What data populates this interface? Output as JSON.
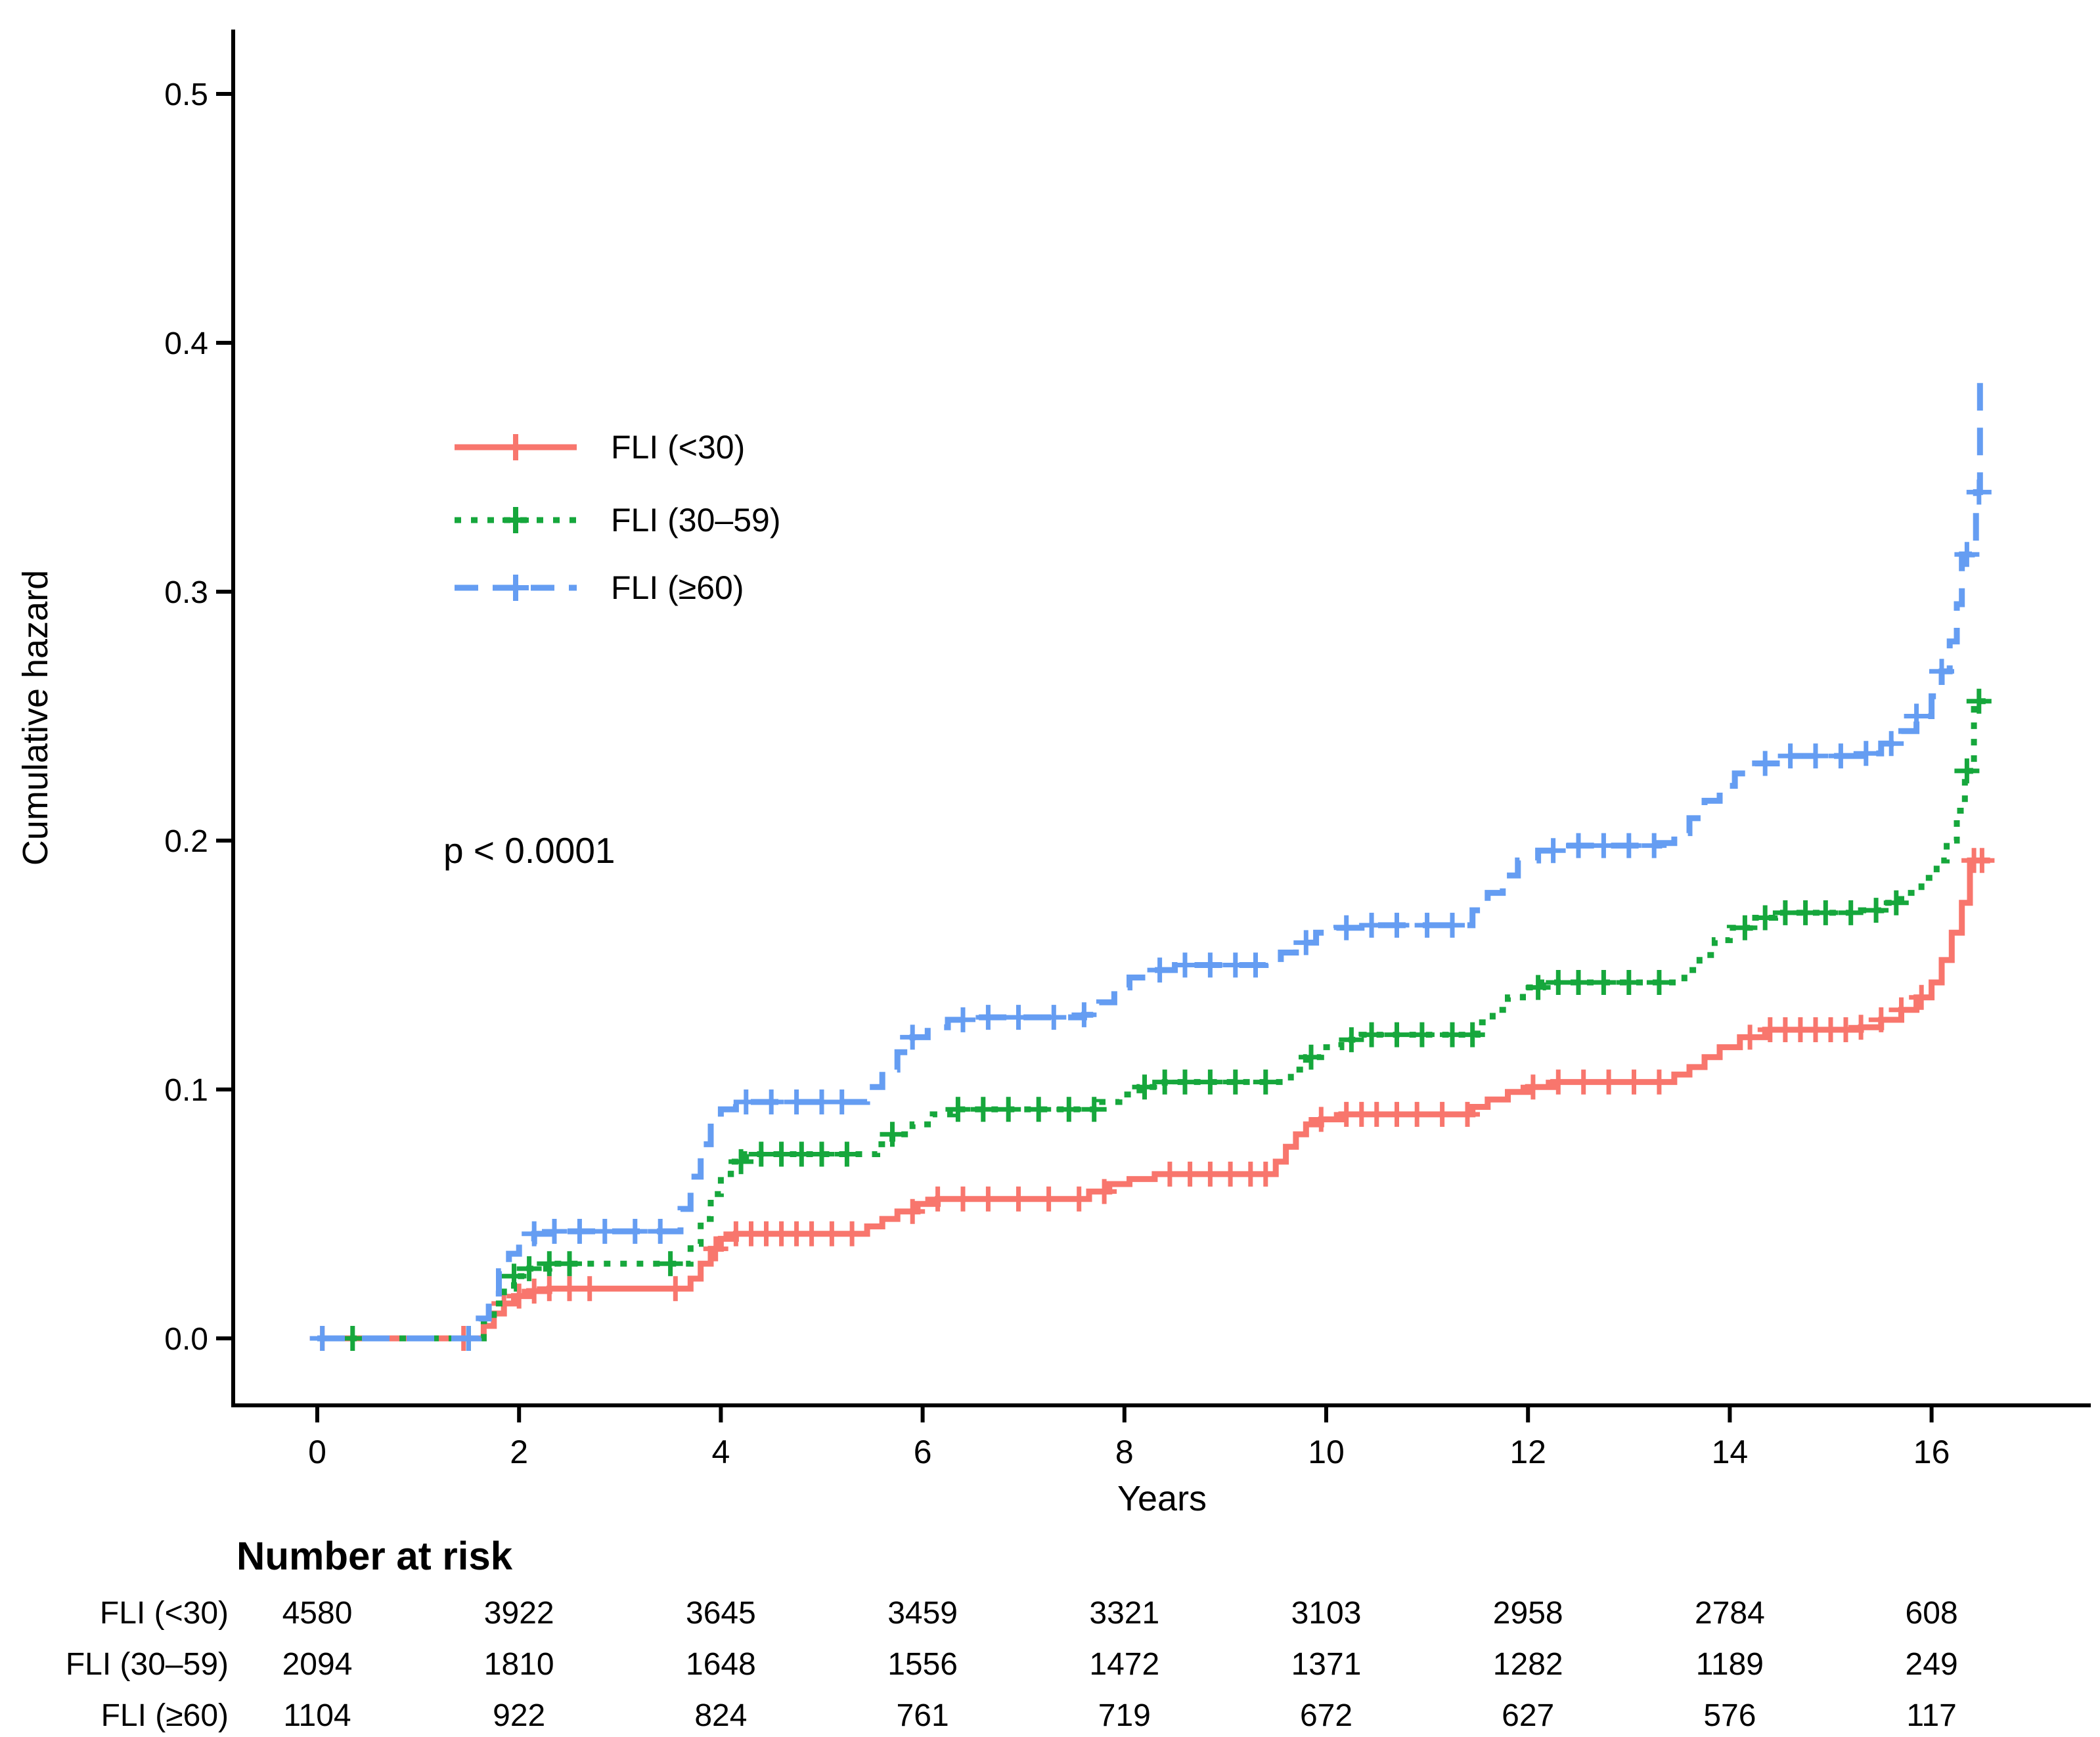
{
  "figure": {
    "background": "#ffffff",
    "kind": "Kaplan-Meier cumulative hazard plot with number-at-risk table"
  },
  "chart_data": {
    "type": "line",
    "subtype": "step-cumulative-hazard",
    "title": "",
    "xlabel": "Years",
    "ylabel": "Cumulative hazard",
    "xlim": [
      0,
      17.6
    ],
    "ylim": [
      0,
      0.53
    ],
    "x_ticks": [
      0,
      2,
      4,
      6,
      8,
      10,
      12,
      14,
      16
    ],
    "y_ticks": [
      {
        "value": 0.0,
        "label": "0.0"
      },
      {
        "value": 0.1,
        "label": "0.1"
      },
      {
        "value": 0.2,
        "label": "0.2"
      },
      {
        "value": 0.3,
        "label": "0.3"
      },
      {
        "value": 0.4,
        "label": "0.4"
      },
      {
        "value": 0.5,
        "label": "0.5"
      }
    ],
    "grid": false,
    "annotation": {
      "text": "p < 0.0001"
    },
    "legend_position": "inside-top-left",
    "series": [
      {
        "name": "FLI (<30)",
        "color": "#F8766D",
        "dash": "solid",
        "points": [
          [
            0,
            0
          ],
          [
            1.55,
            0
          ],
          [
            1.65,
            0.005
          ],
          [
            1.75,
            0.01
          ],
          [
            1.85,
            0.014
          ],
          [
            1.95,
            0.017
          ],
          [
            2.1,
            0.019
          ],
          [
            2.3,
            0.02
          ],
          [
            3.6,
            0.02
          ],
          [
            3.7,
            0.024
          ],
          [
            3.8,
            0.03
          ],
          [
            3.9,
            0.036
          ],
          [
            4.0,
            0.04
          ],
          [
            4.15,
            0.042
          ],
          [
            5.3,
            0.042
          ],
          [
            5.45,
            0.045
          ],
          [
            5.6,
            0.048
          ],
          [
            5.75,
            0.051
          ],
          [
            5.95,
            0.054
          ],
          [
            6.15,
            0.056
          ],
          [
            7.5,
            0.056
          ],
          [
            7.65,
            0.059
          ],
          [
            7.85,
            0.062
          ],
          [
            8.05,
            0.064
          ],
          [
            8.3,
            0.066
          ],
          [
            9.4,
            0.066
          ],
          [
            9.5,
            0.071
          ],
          [
            9.6,
            0.077
          ],
          [
            9.7,
            0.082
          ],
          [
            9.8,
            0.086
          ],
          [
            9.95,
            0.088
          ],
          [
            10.15,
            0.09
          ],
          [
            11.3,
            0.09
          ],
          [
            11.45,
            0.093
          ],
          [
            11.6,
            0.096
          ],
          [
            11.8,
            0.099
          ],
          [
            12.0,
            0.101
          ],
          [
            12.25,
            0.103
          ],
          [
            13.3,
            0.103
          ],
          [
            13.45,
            0.106
          ],
          [
            13.6,
            0.109
          ],
          [
            13.75,
            0.113
          ],
          [
            13.9,
            0.117
          ],
          [
            14.1,
            0.121
          ],
          [
            14.35,
            0.124
          ],
          [
            15.3,
            0.125
          ],
          [
            15.5,
            0.128
          ],
          [
            15.7,
            0.132
          ],
          [
            15.85,
            0.137
          ],
          [
            16.0,
            0.143
          ],
          [
            16.1,
            0.152
          ],
          [
            16.2,
            0.163
          ],
          [
            16.3,
            0.175
          ],
          [
            16.38,
            0.192
          ],
          [
            16.58,
            0.192
          ]
        ],
        "censor_x": [
          0.05,
          1.45,
          1.85,
          2.0,
          2.15,
          2.3,
          2.5,
          2.7,
          3.55,
          3.95,
          4.15,
          4.3,
          4.45,
          4.6,
          4.75,
          4.9,
          5.1,
          5.3,
          5.9,
          6.15,
          6.4,
          6.65,
          6.95,
          7.25,
          7.55,
          7.8,
          8.45,
          8.65,
          8.85,
          9.05,
          9.25,
          9.4,
          9.95,
          10.2,
          10.35,
          10.5,
          10.7,
          10.9,
          11.15,
          11.4,
          12.05,
          12.3,
          12.55,
          12.8,
          13.05,
          13.3,
          14.2,
          14.4,
          14.55,
          14.7,
          14.85,
          15.0,
          15.15,
          15.3,
          15.5,
          15.7,
          15.9,
          16.42,
          16.5
        ]
      },
      {
        "name": "FLI (30–59)",
        "color": "#16A73C",
        "dash": "dotted",
        "points": [
          [
            0,
            0
          ],
          [
            1.55,
            0
          ],
          [
            1.65,
            0.007
          ],
          [
            1.75,
            0.014
          ],
          [
            1.85,
            0.02
          ],
          [
            1.95,
            0.025
          ],
          [
            2.1,
            0.028
          ],
          [
            2.3,
            0.03
          ],
          [
            3.6,
            0.03
          ],
          [
            3.7,
            0.038
          ],
          [
            3.8,
            0.048
          ],
          [
            3.9,
            0.058
          ],
          [
            4.0,
            0.066
          ],
          [
            4.1,
            0.071
          ],
          [
            4.25,
            0.074
          ],
          [
            5.4,
            0.074
          ],
          [
            5.55,
            0.078
          ],
          [
            5.7,
            0.082
          ],
          [
            5.9,
            0.086
          ],
          [
            6.1,
            0.09
          ],
          [
            6.3,
            0.092
          ],
          [
            7.6,
            0.092
          ],
          [
            7.75,
            0.095
          ],
          [
            7.95,
            0.098
          ],
          [
            8.15,
            0.101
          ],
          [
            8.4,
            0.103
          ],
          [
            9.5,
            0.103
          ],
          [
            9.65,
            0.108
          ],
          [
            9.8,
            0.113
          ],
          [
            9.95,
            0.117
          ],
          [
            10.15,
            0.12
          ],
          [
            10.35,
            0.122
          ],
          [
            11.4,
            0.122
          ],
          [
            11.5,
            0.127
          ],
          [
            11.65,
            0.132
          ],
          [
            11.8,
            0.137
          ],
          [
            11.95,
            0.141
          ],
          [
            12.15,
            0.143
          ],
          [
            13.4,
            0.143
          ],
          [
            13.55,
            0.148
          ],
          [
            13.7,
            0.154
          ],
          [
            13.85,
            0.16
          ],
          [
            14.0,
            0.165
          ],
          [
            14.2,
            0.169
          ],
          [
            14.45,
            0.171
          ],
          [
            15.3,
            0.172
          ],
          [
            15.5,
            0.175
          ],
          [
            15.7,
            0.179
          ],
          [
            15.9,
            0.185
          ],
          [
            16.05,
            0.192
          ],
          [
            16.15,
            0.2
          ],
          [
            16.25,
            0.212
          ],
          [
            16.33,
            0.228
          ],
          [
            16.42,
            0.256
          ],
          [
            16.58,
            0.256
          ]
        ],
        "censor_x": [
          0.35,
          1.5,
          1.95,
          2.1,
          2.3,
          2.5,
          3.5,
          4.2,
          4.4,
          4.6,
          4.8,
          5.0,
          5.25,
          5.7,
          6.35,
          6.6,
          6.85,
          7.15,
          7.45,
          7.7,
          8.2,
          8.4,
          8.6,
          8.85,
          9.1,
          9.4,
          9.85,
          10.25,
          10.45,
          10.7,
          10.95,
          11.25,
          11.45,
          12.1,
          12.3,
          12.5,
          12.75,
          13.0,
          13.3,
          14.15,
          14.35,
          14.55,
          14.75,
          14.95,
          15.2,
          15.45,
          15.65,
          16.35,
          16.47
        ]
      },
      {
        "name": "FLI (≥60)",
        "color": "#659DF2",
        "dash": "dashed",
        "points": [
          [
            0,
            0
          ],
          [
            1.5,
            0
          ],
          [
            1.6,
            0.008
          ],
          [
            1.7,
            0.018
          ],
          [
            1.8,
            0.027
          ],
          [
            1.9,
            0.034
          ],
          [
            2.0,
            0.039
          ],
          [
            2.15,
            0.042
          ],
          [
            2.35,
            0.043
          ],
          [
            3.5,
            0.043
          ],
          [
            3.6,
            0.052
          ],
          [
            3.7,
            0.065
          ],
          [
            3.8,
            0.078
          ],
          [
            3.9,
            0.087
          ],
          [
            4.0,
            0.092
          ],
          [
            4.15,
            0.095
          ],
          [
            5.3,
            0.095
          ],
          [
            5.45,
            0.101
          ],
          [
            5.6,
            0.108
          ],
          [
            5.75,
            0.115
          ],
          [
            5.9,
            0.121
          ],
          [
            6.05,
            0.125
          ],
          [
            6.25,
            0.128
          ],
          [
            6.5,
            0.129
          ],
          [
            7.6,
            0.13
          ],
          [
            7.75,
            0.135
          ],
          [
            7.9,
            0.141
          ],
          [
            8.05,
            0.145
          ],
          [
            8.25,
            0.148
          ],
          [
            8.5,
            0.15
          ],
          [
            9.4,
            0.151
          ],
          [
            9.55,
            0.155
          ],
          [
            9.7,
            0.159
          ],
          [
            9.9,
            0.163
          ],
          [
            10.1,
            0.165
          ],
          [
            10.35,
            0.166
          ],
          [
            11.3,
            0.166
          ],
          [
            11.45,
            0.172
          ],
          [
            11.6,
            0.179
          ],
          [
            11.75,
            0.186
          ],
          [
            11.9,
            0.192
          ],
          [
            12.1,
            0.196
          ],
          [
            12.35,
            0.198
          ],
          [
            13.3,
            0.199
          ],
          [
            13.45,
            0.203
          ],
          [
            13.6,
            0.209
          ],
          [
            13.75,
            0.216
          ],
          [
            13.9,
            0.222
          ],
          [
            14.05,
            0.227
          ],
          [
            14.25,
            0.231
          ],
          [
            14.5,
            0.234
          ],
          [
            15.3,
            0.235
          ],
          [
            15.5,
            0.239
          ],
          [
            15.7,
            0.244
          ],
          [
            15.85,
            0.25
          ],
          [
            16.0,
            0.258
          ],
          [
            16.1,
            0.268
          ],
          [
            16.18,
            0.28
          ],
          [
            16.25,
            0.295
          ],
          [
            16.3,
            0.315
          ],
          [
            16.4,
            0.318
          ],
          [
            16.44,
            0.34
          ],
          [
            16.48,
            0.385
          ],
          [
            16.52,
            0.385
          ]
        ],
        "censor_x": [
          0.05,
          1.5,
          2.15,
          2.35,
          2.6,
          2.85,
          3.15,
          3.4,
          4.25,
          4.5,
          4.75,
          5.0,
          5.2,
          5.9,
          6.4,
          6.65,
          6.95,
          7.3,
          7.6,
          8.35,
          8.6,
          8.85,
          9.1,
          9.3,
          9.8,
          10.2,
          10.45,
          10.7,
          11.0,
          11.25,
          12.25,
          12.5,
          12.75,
          13.0,
          13.25,
          14.35,
          14.6,
          14.85,
          15.1,
          15.35,
          15.6,
          15.85,
          16.1,
          16.35,
          16.47
        ]
      }
    ],
    "risk_table": {
      "title": "Number at risk",
      "columns_years": [
        0,
        2,
        4,
        6,
        8,
        10,
        12,
        14,
        16
      ],
      "rows": [
        {
          "label": "FLI (<30)",
          "color": "#F8766D",
          "values": [
            4580,
            3922,
            3645,
            3459,
            3321,
            3103,
            2958,
            2784,
            608
          ]
        },
        {
          "label": "FLI (30–59)",
          "color": "#16A73C",
          "values": [
            2094,
            1810,
            1648,
            1556,
            1472,
            1371,
            1282,
            1189,
            249
          ]
        },
        {
          "label": "FLI (≥60)",
          "color": "#659DF2",
          "values": [
            1104,
            922,
            824,
            761,
            719,
            672,
            627,
            576,
            117
          ]
        }
      ]
    }
  }
}
